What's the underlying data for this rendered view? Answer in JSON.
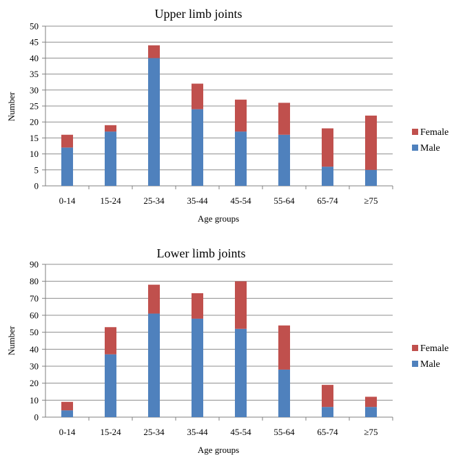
{
  "colors": {
    "male": "#4f81bd",
    "female": "#c0504d",
    "grid": "#8c8c8c"
  },
  "chart_data": [
    {
      "type": "bar",
      "stacked": true,
      "title": "Upper limb joints",
      "xlabel": "Age groups",
      "ylabel": "Number",
      "ylim": [
        0,
        50
      ],
      "ystep": 5,
      "grid": true,
      "legend": "right",
      "categories": [
        "0-14",
        "15-24",
        "25-34",
        "35-44",
        "45-54",
        "55-64",
        "65-74",
        "≥75"
      ],
      "series": [
        {
          "name": "Male",
          "values": [
            12,
            17,
            40,
            24,
            17,
            16,
            6,
            5
          ]
        },
        {
          "name": "Female",
          "values": [
            4,
            2,
            4,
            8,
            10,
            10,
            12,
            17
          ]
        }
      ]
    },
    {
      "type": "bar",
      "stacked": true,
      "title": "Lower limb joints",
      "xlabel": "Age groups",
      "ylabel": "Number",
      "ylim": [
        0,
        90
      ],
      "ystep": 10,
      "grid": true,
      "legend": "right",
      "categories": [
        "0-14",
        "15-24",
        "25-34",
        "35-44",
        "45-54",
        "55-64",
        "65-74",
        "≥75"
      ],
      "series": [
        {
          "name": "Male",
          "values": [
            4,
            37,
            61,
            58,
            52,
            28,
            6,
            6
          ]
        },
        {
          "name": "Female",
          "values": [
            5,
            16,
            17,
            15,
            28,
            26,
            13,
            6
          ]
        }
      ]
    }
  ]
}
